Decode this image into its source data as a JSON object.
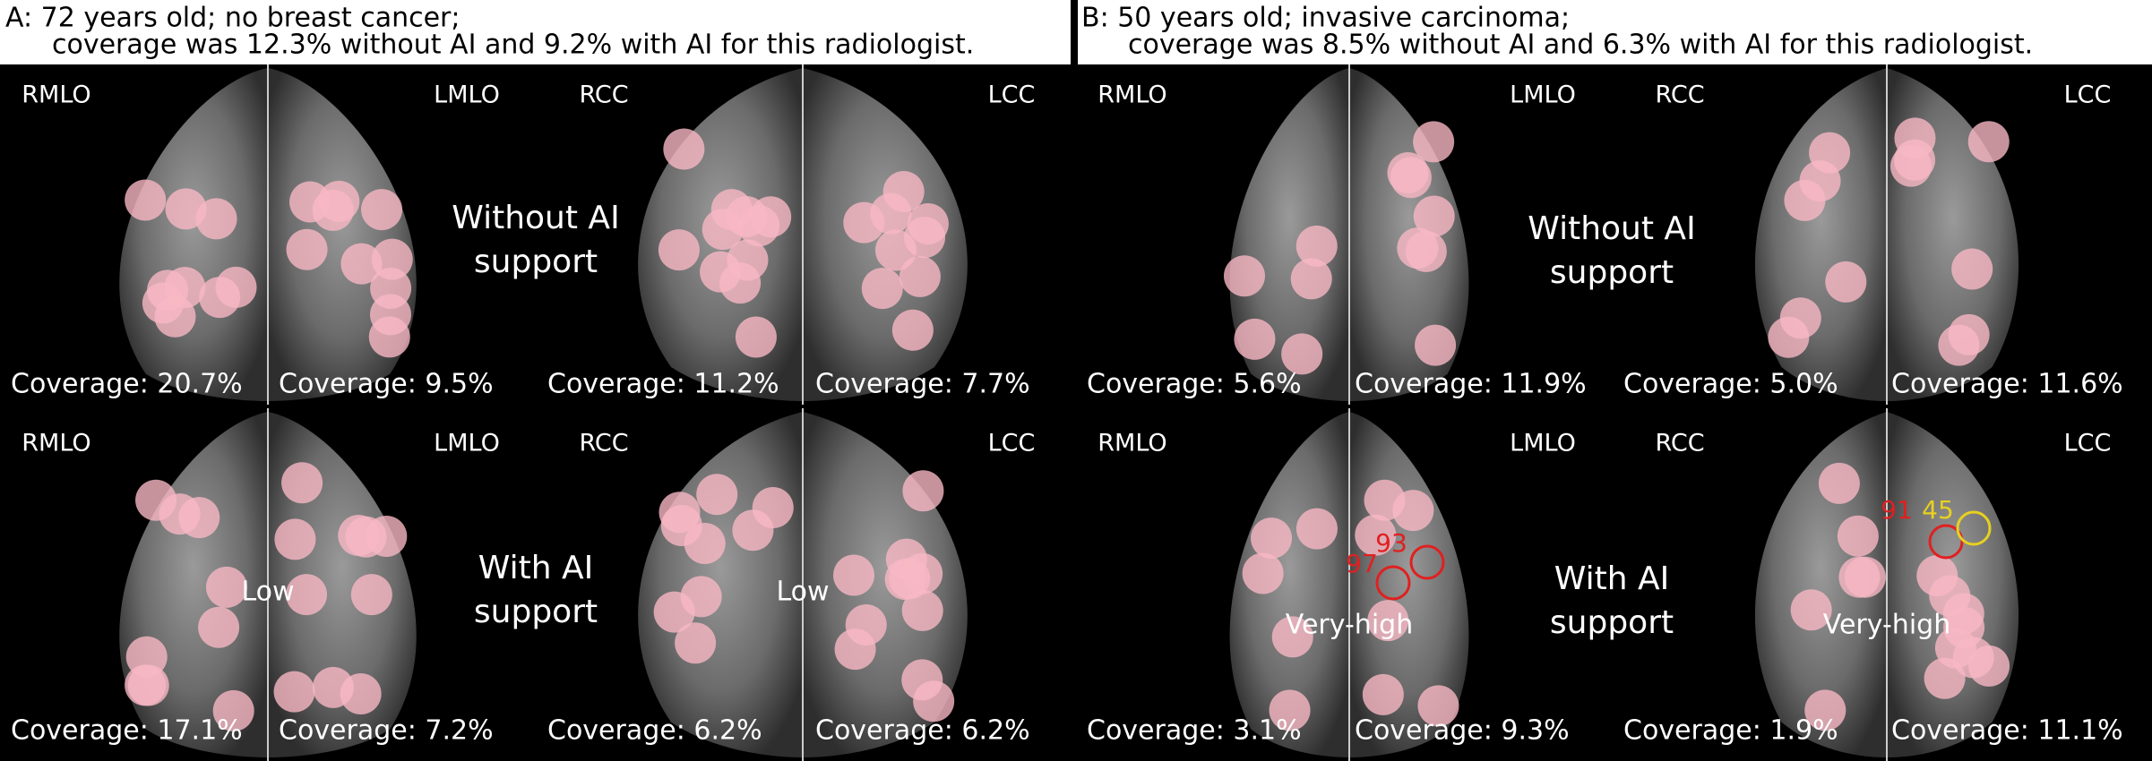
{
  "panels": [
    {
      "title": [
        "A: 72 years old; no breast cancer;",
        "coverage was 12.3% without AI and 9.2% with AI for this radiologist."
      ],
      "rows": [
        {
          "views": [
            "RMLO",
            "LMLO",
            "RCC",
            "LCC"
          ],
          "support": [
            "Without AI",
            "support"
          ],
          "coverage": [
            "Coverage: 20.7%",
            "Coverage: 9.5%",
            "Coverage: 11.2%",
            "Coverage: 7.7%"
          ]
        },
        {
          "views": [
            "RMLO",
            "LMLO",
            "RCC",
            "LCC"
          ],
          "support": [
            "With AI",
            "support"
          ],
          "coverage": [
            "Coverage: 17.1%",
            "Coverage: 7.2%",
            "Coverage: 6.2%",
            "Coverage: 6.2%"
          ],
          "risk": [
            "Low",
            "Low"
          ]
        }
      ]
    },
    {
      "title": [
        "B: 50 years old; invasive carcinoma;",
        "coverage was 8.5% without AI and 6.3% with AI for this radiologist."
      ],
      "rows": [
        {
          "views": [
            "RMLO",
            "LMLO",
            "RCC",
            "LCC"
          ],
          "support": [
            "Without AI",
            "support"
          ],
          "coverage": [
            "Coverage: 5.6%",
            "Coverage: 11.9%",
            "Coverage: 5.0%",
            "Coverage: 11.6%"
          ]
        },
        {
          "views": [
            "RMLO",
            "LMLO",
            "RCC",
            "LCC"
          ],
          "support": [
            "With AI",
            "support"
          ],
          "coverage": [
            "Coverage: 3.1%",
            "Coverage: 9.3%",
            "Coverage: 1.9%",
            "Coverage: 11.1%"
          ],
          "risk": [
            "Very-high",
            "Very-high"
          ],
          "scores": [
            93,
            97,
            91,
            45
          ]
        }
      ]
    }
  ]
}
